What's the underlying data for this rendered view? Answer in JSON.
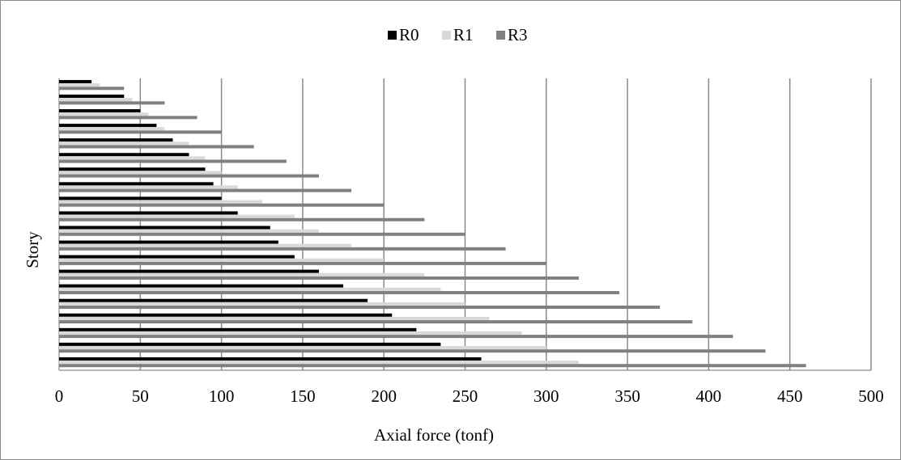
{
  "chart_data": {
    "type": "bar",
    "orientation": "horizontal",
    "title": "",
    "xlabel": "Axial force (tonf)",
    "ylabel": "Story",
    "xlim": [
      0,
      500
    ],
    "xticks": [
      "0",
      "50",
      "100",
      "150",
      "200",
      "250",
      "300",
      "350",
      "400",
      "450",
      "500"
    ],
    "grid": "vertical gridlines",
    "legend_position": "top",
    "colors": {
      "R0": "#000000",
      "R1": "#d9d9d9",
      "R3": "#808080"
    },
    "stories": 20,
    "series": [
      {
        "name": "R0",
        "values": [
          20,
          40,
          50,
          60,
          70,
          80,
          90,
          95,
          100,
          110,
          130,
          135,
          145,
          160,
          175,
          190,
          205,
          220,
          235,
          260
        ]
      },
      {
        "name": "R1",
        "values": [
          25,
          45,
          55,
          65,
          80,
          90,
          100,
          110,
          125,
          145,
          160,
          180,
          200,
          225,
          235,
          250,
          265,
          285,
          300,
          320
        ]
      },
      {
        "name": "R3",
        "values": [
          40,
          65,
          85,
          100,
          120,
          140,
          160,
          180,
          200,
          225,
          250,
          275,
          300,
          320,
          345,
          370,
          390,
          415,
          435,
          460
        ]
      }
    ]
  }
}
